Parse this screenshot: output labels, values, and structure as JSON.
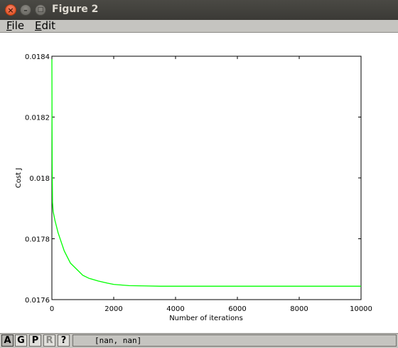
{
  "window": {
    "title": "Figure 2",
    "close_glyph": "×",
    "minimize_glyph": "–",
    "maximize_glyph": "□"
  },
  "menu": {
    "file_key": "F",
    "file_rest": "ile",
    "edit_key": "E",
    "edit_rest": "dit"
  },
  "toolbar": {
    "buttons": [
      "A",
      "G",
      "P",
      "R",
      "?"
    ],
    "coords": "[nan, nan]"
  },
  "colors": {
    "line": "#00ff00",
    "axes": "#000000",
    "titlebar": "#3c3b37",
    "panel": "#c5c4c0"
  },
  "chart_data": {
    "type": "line",
    "title": "",
    "xlabel": "Number of iterations",
    "ylabel": "Cost J",
    "xlim": [
      0,
      10000
    ],
    "ylim": [
      0.0176,
      0.0184
    ],
    "xticks": [
      0,
      2000,
      4000,
      6000,
      8000,
      10000
    ],
    "xtick_labels": [
      "0",
      "2000",
      "4000",
      "6000",
      "8000",
      "10000"
    ],
    "yticks": [
      0.0176,
      0.0178,
      0.018,
      0.0182,
      0.0184
    ],
    "ytick_labels": [
      "0.0176",
      "0.0178",
      "0.018",
      "0.0182",
      "0.0184"
    ],
    "grid": false,
    "series": [
      {
        "x": [
          0,
          2,
          5,
          10,
          20,
          40,
          60,
          100,
          150,
          200,
          300,
          400,
          500,
          600,
          800,
          1000,
          1200,
          1500,
          1800,
          2000,
          2500,
          3000,
          3500,
          4000,
          5000,
          6000,
          7000,
          8000,
          9000,
          10000
        ],
        "values": [
          0.01839,
          0.01832,
          0.01818,
          0.01805,
          0.01792,
          0.01789,
          0.01788,
          0.01786,
          0.01784,
          0.01782,
          0.01779,
          0.01776,
          0.01774,
          0.01772,
          0.0177,
          0.01768,
          0.01767,
          0.017661,
          0.017654,
          0.01765,
          0.017646,
          0.017645,
          0.017644,
          0.017644,
          0.017644,
          0.017644,
          0.017644,
          0.017644,
          0.017644,
          0.017644
        ]
      }
    ]
  }
}
